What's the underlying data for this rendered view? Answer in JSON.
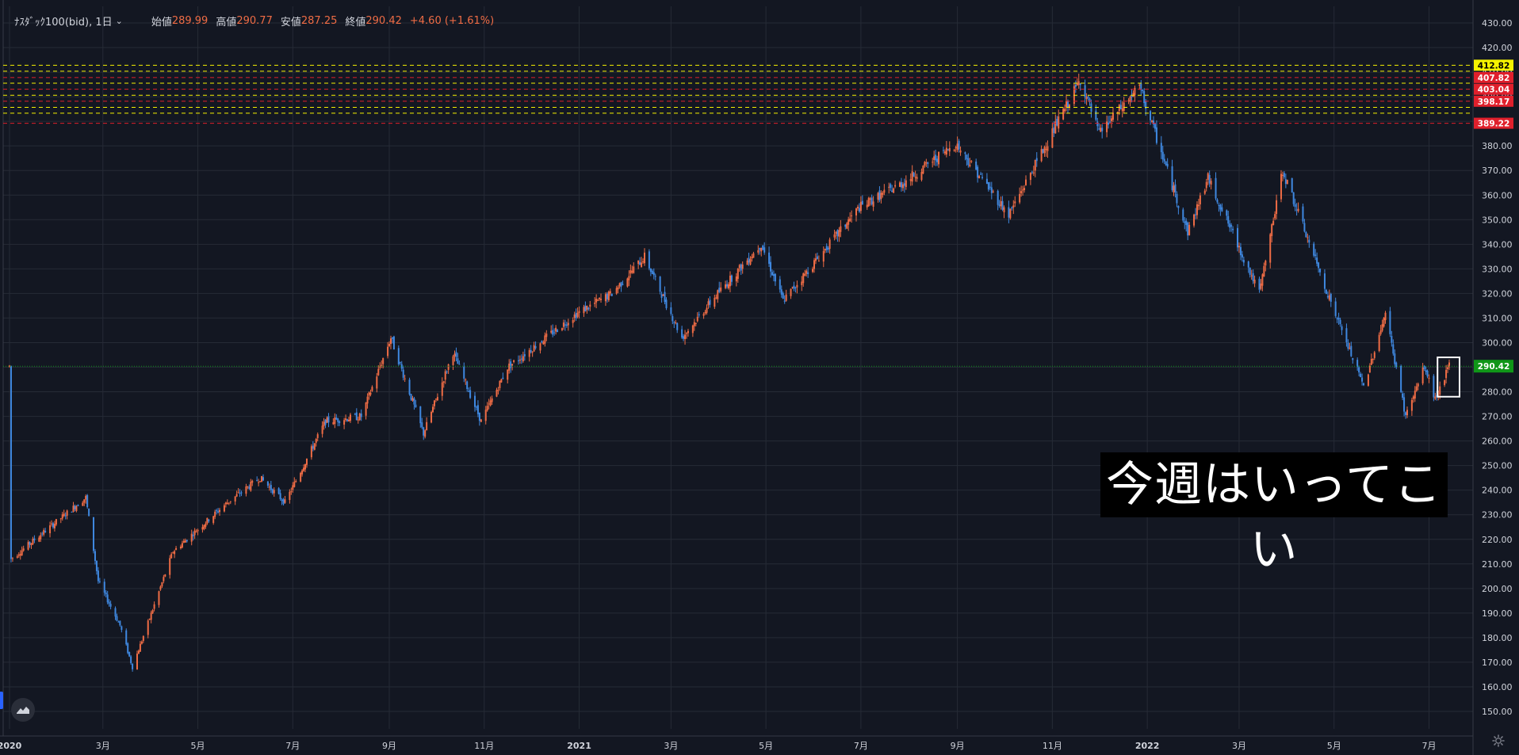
{
  "legend": {
    "symbol": "ﾅｽﾀﾞｯｸ100(bid), 1日",
    "open_label": "始値",
    "open": "289.99",
    "high_label": "高値",
    "high": "290.77",
    "low_label": "安値",
    "low": "287.25",
    "close_label": "終値",
    "close": "290.42",
    "change": "+4.60 (+1.61%)"
  },
  "overlay_text": "今週はいってこい",
  "icons": [
    "tradingview-logo-icon",
    "chevron-down-icon",
    "gear-icon"
  ],
  "colors": {
    "background": "#131722",
    "up_candle": "#ef6c45",
    "down_candle": "#3f88e0",
    "axis_text": "#d1d4dc",
    "grid": "#262b36",
    "last_price": "#109618"
  },
  "price_axis_labels": [
    "430.00",
    "420.00",
    "410.00",
    "400.00",
    "390.00",
    "380.00",
    "370.00",
    "360.00",
    "350.00",
    "340.00",
    "330.00",
    "320.00",
    "310.00",
    "300.00",
    "290.00",
    "280.00",
    "270.00",
    "260.00",
    "250.00",
    "240.00",
    "230.00",
    "220.00",
    "210.00",
    "200.00",
    "190.00",
    "180.00",
    "170.00",
    "160.00",
    "150.00"
  ],
  "time_axis_labels": [
    "2020",
    "3月",
    "5月",
    "7月",
    "9月",
    "11月",
    "2021",
    "3月",
    "5月",
    "7月",
    "9月",
    "11月",
    "2022",
    "3月",
    "5月",
    "7月"
  ],
  "level_tags": [
    {
      "text": "412.82",
      "color": "#f5f200",
      "text_color": "#000000"
    },
    {
      "text": "407.82",
      "color": "#e0202c",
      "text_color": "#ffffff"
    },
    {
      "text": "403.04",
      "color": "#e0202c",
      "text_color": "#ffffff"
    },
    {
      "text": "398.17",
      "color": "#e0202c",
      "text_color": "#ffffff"
    },
    {
      "text": "389.22",
      "color": "#e0202c",
      "text_color": "#ffffff"
    }
  ],
  "last_price_tag": {
    "text": "290.42",
    "color": "#109618"
  },
  "chart_data": {
    "type": "candlestick",
    "title": "",
    "xlabel": "",
    "ylabel": "",
    "ylim": [
      145,
      432
    ],
    "x_range": [
      "2020-01-01",
      "2022-07-14"
    ],
    "grid": true,
    "legend_position": "top-left",
    "last_price": 290.42,
    "horizontal_levels": [
      {
        "value": 412.82,
        "color": "#f5f200",
        "style": "dashed"
      },
      {
        "value": 410.4,
        "color": "#f5f200",
        "style": "dashed"
      },
      {
        "value": 407.82,
        "color": "#e0202c",
        "style": "dashed"
      },
      {
        "value": 405.5,
        "color": "#f5f200",
        "style": "dashed"
      },
      {
        "value": 403.04,
        "color": "#e0202c",
        "style": "dashed"
      },
      {
        "value": 400.6,
        "color": "#f5f200",
        "style": "dashed"
      },
      {
        "value": 398.17,
        "color": "#e0202c",
        "style": "dashed"
      },
      {
        "value": 395.7,
        "color": "#f5f200",
        "style": "dashed"
      },
      {
        "value": 393.3,
        "color": "#f5f200",
        "style": "dashed"
      },
      {
        "value": 389.22,
        "color": "#e0202c",
        "style": "dashed"
      }
    ],
    "price_path": [
      [
        "2020-01-02",
        212
      ],
      [
        "2020-02-19",
        237
      ],
      [
        "2020-02-27",
        203
      ],
      [
        "2020-03-12",
        185
      ],
      [
        "2020-03-20",
        168
      ],
      [
        "2020-04-15",
        215
      ],
      [
        "2020-05-20",
        235
      ],
      [
        "2020-06-10",
        245
      ],
      [
        "2020-06-26",
        235
      ],
      [
        "2020-07-22",
        268
      ],
      [
        "2020-08-14",
        270
      ],
      [
        "2020-09-02",
        302
      ],
      [
        "2020-09-23",
        263
      ],
      [
        "2020-10-12",
        296
      ],
      [
        "2020-10-30",
        268
      ],
      [
        "2020-11-16",
        290
      ],
      [
        "2020-12-31",
        312
      ],
      [
        "2021-01-22",
        320
      ],
      [
        "2021-02-12",
        335
      ],
      [
        "2021-03-08",
        302
      ],
      [
        "2021-03-31",
        320
      ],
      [
        "2021-04-28",
        340
      ],
      [
        "2021-05-12",
        317
      ],
      [
        "2021-06-30",
        355
      ],
      [
        "2021-07-28",
        365
      ],
      [
        "2021-08-31",
        381
      ],
      [
        "2021-10-04",
        352
      ],
      [
        "2021-11-19",
        407
      ],
      [
        "2021-12-01",
        385
      ],
      [
        "2021-12-27",
        404
      ],
      [
        "2022-01-27",
        345
      ],
      [
        "2022-02-09",
        367
      ],
      [
        "2022-03-14",
        320
      ],
      [
        "2022-03-29",
        370
      ],
      [
        "2022-04-28",
        318
      ],
      [
        "2022-05-20",
        282
      ],
      [
        "2022-06-03",
        312
      ],
      [
        "2022-06-16",
        270
      ],
      [
        "2022-06-28",
        290
      ],
      [
        "2022-07-05",
        277
      ],
      [
        "2022-07-14",
        290.42
      ]
    ]
  }
}
